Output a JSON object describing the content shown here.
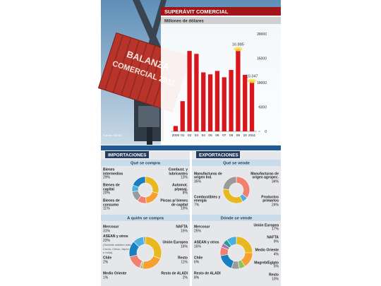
{
  "photo": {
    "caption_lines": [
      "BALANZA",
      "COMERCIAL 2011"
    ]
  },
  "chart_data": {
    "type": "bar",
    "title": "SUPERÁVIT COMERCIAL",
    "subtitle": "Millones de dólares",
    "source": "Fuente: INDEC",
    "categories": [
      "2000",
      "01",
      "02",
      "03",
      "04",
      "05",
      "06",
      "07",
      "08",
      "09",
      "10",
      "2011"
    ],
    "values": [
      1100,
      6200,
      16500,
      15900,
      12100,
      11700,
      12400,
      11100,
      12600,
      16885,
      11600,
      10347
    ],
    "value_labels": [
      null,
      null,
      null,
      null,
      null,
      null,
      null,
      null,
      null,
      "16.885",
      null,
      "10.347"
    ],
    "color": "#d8161b",
    "ylim": [
      0,
      20000
    ],
    "yticks": [
      0,
      5000,
      10000,
      15000,
      20000
    ]
  },
  "panels": [
    {
      "title": "IMPORTACIONES",
      "sections": [
        {
          "subtitle": "Qué se compra",
          "segments": [
            {
              "name": "Bienes intermedios",
              "value": 29,
              "value_label": "29%",
              "color": "#e8b820"
            },
            {
              "name": "Bienes de capital",
              "value": 20,
              "value_label": "20%",
              "color": "#f5a030"
            },
            {
              "name": "Bienes de consumo",
              "value": 11,
              "value_label": "11%",
              "color": "#f08070"
            },
            {
              "name": "Combust. y lubricantes",
              "value": 13,
              "value_label": "13%",
              "color": "#9a9a9a"
            },
            {
              "name": "Automot. p/pasaj.",
              "value": 8,
              "value_label": "8%",
              "color": "#4ab0e0"
            },
            {
              "name": "Piezas p/ bienes de capital",
              "value": 19,
              "value_label": "19%",
              "color": "#1a7fc0"
            }
          ]
        },
        {
          "subtitle": "A quién se compra",
          "segments": [
            {
              "name": "Mercosur",
              "value": 31,
              "value_label": "31%",
              "color": "#e8b820"
            },
            {
              "name": "ASEAN y otros",
              "value": 22,
              "value_label": "22%",
              "color": "#f5a030",
              "note": "(Sudeste asiático más Corea, China, Japón e India)"
            },
            {
              "name": "Chile",
              "value": 2,
              "value_label": "2%",
              "color": "#8cc060"
            },
            {
              "name": "Medio Oriente",
              "value": 1,
              "value_label": "1%",
              "color": "#b070b0"
            },
            {
              "name": "NAFTA",
              "value": 15,
              "value_label": "15%",
              "color": "#f08070"
            },
            {
              "name": "Unión Europea",
              "value": 16,
              "value_label": "16%",
              "color": "#1a7fc0"
            },
            {
              "name": "Resto",
              "value": 11,
              "value_label": "11%",
              "color": "#4ab0e0"
            },
            {
              "name": "Resto de ALADI",
              "value": 2,
              "value_label": "2%",
              "color": "#9a9a9a"
            }
          ]
        }
      ]
    },
    {
      "title": "EXPORTACIONES",
      "sections": [
        {
          "subtitle": "Qué se vende",
          "segments": [
            {
              "name": "Manufacturas de origen Ind.",
              "value": 35,
              "value_label": "35%",
              "color": "#f08070"
            },
            {
              "name": "Combustibles y energía",
              "value": 7,
              "value_label": "7%",
              "color": "#4ab0e0"
            },
            {
              "name": "Manufacturas de origen agropec.",
              "value": 34,
              "value_label": "34%",
              "color": "#e8b820"
            },
            {
              "name": "Productos primarios",
              "value": 24,
              "value_label": "24%",
              "color": "#9a9a9a"
            }
          ]
        },
        {
          "subtitle": "Dónde se vende",
          "segments": [
            {
              "name": "Mercosur",
              "value": 25,
              "value_label": "25%",
              "color": "#e8b820"
            },
            {
              "name": "ASEAN y otros",
              "value": 16,
              "value_label": "16%",
              "color": "#f5a030"
            },
            {
              "name": "Chile",
              "value": 6,
              "value_label": "6%",
              "color": "#8cc060"
            },
            {
              "name": "Resto de ALADI",
              "value": 8,
              "value_label": "8%",
              "color": "#9a9a9a"
            },
            {
              "name": "Unión Europea",
              "value": 17,
              "value_label": "17%",
              "color": "#1a7fc0"
            },
            {
              "name": "NAFTA",
              "value": 9,
              "value_label": "9%",
              "color": "#f08070"
            },
            {
              "name": "Medio Oriente",
              "value": 4,
              "value_label": "4%",
              "color": "#b070b0"
            },
            {
              "name": "Magreb/Egipto",
              "value": 5,
              "value_label": "5%",
              "color": "#2a9a9a"
            },
            {
              "name": "Resto",
              "value": 10,
              "value_label": "10%",
              "color": "#4ab0e0"
            }
          ]
        }
      ]
    }
  ]
}
